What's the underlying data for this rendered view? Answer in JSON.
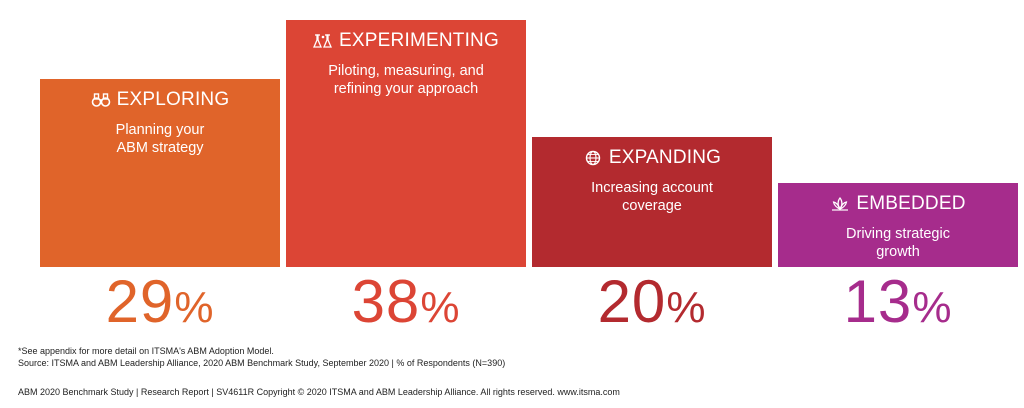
{
  "chart_data": {
    "type": "bar",
    "ylim": [
      0,
      40
    ],
    "categories": [
      "EXPLORING",
      "EXPERIMENTING",
      "EXPANDING",
      "EMBEDDED"
    ],
    "values": [
      29,
      38,
      20,
      13
    ],
    "bars": [
      {
        "label": "EXPLORING",
        "description": [
          "Planning your",
          "ABM strategy"
        ],
        "value": 29,
        "display": "29",
        "color": "#e0642a",
        "icon": "binoculars-icon"
      },
      {
        "label": "EXPERIMENTING",
        "description": [
          "Piloting, measuring, and",
          "refining your approach"
        ],
        "value": 38,
        "display": "38",
        "color": "#dc4535",
        "icon": "lab-flask-icon"
      },
      {
        "label": "EXPANDING",
        "description": [
          "Increasing account",
          "coverage"
        ],
        "value": 20,
        "display": "20",
        "color": "#b32a2f",
        "icon": "globe-icon"
      },
      {
        "label": "EMBEDDED",
        "description": [
          "Driving strategic",
          "growth"
        ],
        "value": 13,
        "display": "13",
        "color": "#a62c8c",
        "icon": "lotus-icon"
      }
    ],
    "percent_sign": "%"
  },
  "notes": {
    "line1": "*See appendix for more detail on ITSMA's ABM Adoption Model.",
    "line2": "Source: ITSMA and ABM Leadership Alliance, 2020 ABM Benchmark Study, September 2020 | % of Respondents (N=390)"
  },
  "footer": {
    "text": "ABM 2020 Benchmark Study | Research Report | SV4611R Copyright © 2020 ITSMA and ABM Leadership Alliance. All rights reserved. www.itsma.com"
  }
}
